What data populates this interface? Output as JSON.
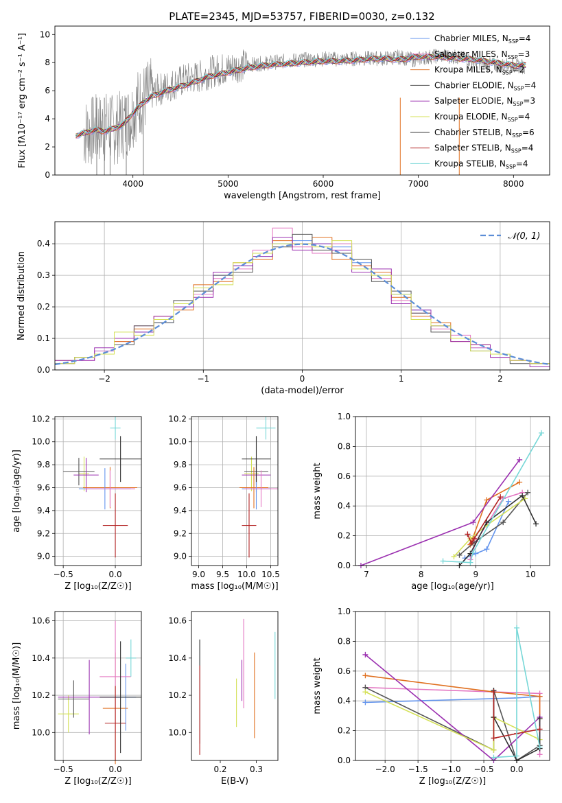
{
  "figure": {
    "title": "PLATE=2345, MJD=53757, FIBERID=0030, z=0.132"
  },
  "chart_data": [
    {
      "id": "spectrum",
      "type": "line",
      "title": "PLATE=2345, MJD=53757, FIBERID=0030, z=0.132",
      "xlabel": "wavelength [Angstrom, rest frame]",
      "ylabel": "Flux [fλ10⁻¹⁷ erg cm⁻² s⁻¹ A⁻¹]",
      "xlim": [
        3180,
        8380
      ],
      "ylim": [
        0,
        10.6
      ],
      "xticks": [
        4000,
        5000,
        6000,
        7000,
        8000
      ],
      "yticks": [
        0,
        2,
        4,
        6,
        8,
        10
      ],
      "grid": false,
      "legend_position": "right",
      "data_series": {
        "name": "data",
        "color": "#808080",
        "x": [
          3480,
          3560,
          3640,
          3720,
          3800,
          3880,
          3960,
          4040,
          4120,
          4250,
          4400,
          4550,
          4700,
          4850,
          5000,
          5150,
          5300,
          5450,
          5600,
          5750,
          5900,
          6050,
          6200,
          6350,
          6500,
          6650,
          6800,
          6950,
          7100,
          7250,
          7400,
          7550,
          7700,
          7850,
          8000,
          8120
        ],
        "y": [
          3.0,
          3.1,
          3.3,
          3.4,
          3.2,
          3.5,
          4.0,
          5.0,
          5.5,
          6.0,
          6.4,
          6.8,
          7.0,
          7.4,
          7.6,
          7.8,
          7.9,
          8.0,
          8.1,
          8.2,
          8.2,
          8.3,
          8.2,
          8.3,
          8.3,
          8.3,
          8.4,
          8.2,
          8.4,
          8.5,
          8.4,
          8.2,
          7.9,
          7.8,
          7.8,
          7.7
        ]
      },
      "series": [
        {
          "name": "Chabrier MILES, N_SSP=4",
          "color": "#6495ed"
        },
        {
          "name": "Salpeter MILES, N_SSP=3",
          "color": "#e377c2"
        },
        {
          "name": "Kroupa MILES, N_SSP=2",
          "color": "#e07020"
        },
        {
          "name": "Chabrier ELODIE, N_SSP=4",
          "color": "#555555"
        },
        {
          "name": "Salpeter ELODIE, N_SSP=3",
          "color": "#9b30b0"
        },
        {
          "name": "Kroupa ELODIE, N_SSP=4",
          "color": "#d4e157"
        },
        {
          "name": "Chabrier STELIB, N_SSP=6",
          "color": "#303030"
        },
        {
          "name": "Salpeter STELIB, N_SSP=4",
          "color": "#b22222"
        },
        {
          "name": "Kroupa STELIB, N_SSP=4",
          "color": "#76d7d7"
        }
      ],
      "model_x": [
        3400,
        3500,
        3600,
        3700,
        3800,
        3900,
        4000,
        4100,
        4200,
        4400,
        4600,
        4800,
        5000,
        5200,
        5400,
        5600,
        5800,
        6000,
        6200,
        6400,
        6600,
        6800,
        7000,
        7200,
        7400,
        7600,
        7800,
        8000,
        8130
      ],
      "model_y": [
        2.8,
        3.0,
        3.2,
        3.1,
        3.3,
        3.6,
        4.4,
        5.1,
        5.6,
        6.1,
        6.5,
        7.0,
        7.3,
        7.6,
        7.8,
        7.9,
        8.0,
        8.1,
        8.1,
        8.2,
        8.3,
        8.2,
        8.4,
        8.4,
        8.3,
        8.2,
        8.0,
        7.8,
        7.8
      ]
    },
    {
      "id": "residual-histogram",
      "type": "histogram",
      "xlabel": "(data-model)/error",
      "ylabel": "Normed distribution",
      "xlim": [
        -2.5,
        2.5
      ],
      "ylim": [
        0,
        0.47
      ],
      "xticks": [
        -2,
        -1,
        0,
        1,
        2
      ],
      "yticks": [
        0.0,
        0.1,
        0.2,
        0.3,
        0.4
      ],
      "grid": true,
      "legend_position": "top-right",
      "legend": "𝒩(0, 1)",
      "bin_edges": [
        -2.5,
        -2.3,
        -2.1,
        -1.9,
        -1.7,
        -1.5,
        -1.3,
        -1.1,
        -0.9,
        -0.7,
        -0.5,
        -0.3,
        -0.1,
        0.1,
        0.3,
        0.5,
        0.7,
        0.9,
        1.1,
        1.3,
        1.5,
        1.7,
        1.9,
        2.1,
        2.3,
        2.5
      ],
      "reference_curve": {
        "name": "𝒩(0, 1)",
        "mean": 0,
        "sigma": 1,
        "color": "#5b8dd6"
      },
      "hist_values": [
        [
          0.03,
          0.04,
          0.06,
          0.1,
          0.12,
          0.15,
          0.2,
          0.26,
          0.3,
          0.33,
          0.36,
          0.4,
          0.41,
          0.4,
          0.39,
          0.34,
          0.3,
          0.24,
          0.19,
          0.14,
          0.1,
          0.07,
          0.05,
          0.03,
          0.02
        ],
        [
          0.02,
          0.03,
          0.06,
          0.09,
          0.14,
          0.16,
          0.21,
          0.24,
          0.29,
          0.32,
          0.38,
          0.45,
          0.39,
          0.37,
          0.4,
          0.33,
          0.29,
          0.22,
          0.18,
          0.13,
          0.11,
          0.07,
          0.04,
          0.03,
          0.02
        ],
        [
          0.03,
          0.04,
          0.05,
          0.09,
          0.13,
          0.17,
          0.19,
          0.27,
          0.28,
          0.34,
          0.35,
          0.41,
          0.4,
          0.42,
          0.35,
          0.33,
          0.31,
          0.23,
          0.17,
          0.15,
          0.09,
          0.08,
          0.05,
          0.03,
          0.02
        ],
        [
          0.02,
          0.04,
          0.05,
          0.08,
          0.14,
          0.15,
          0.22,
          0.25,
          0.3,
          0.31,
          0.37,
          0.39,
          0.43,
          0.38,
          0.37,
          0.35,
          0.28,
          0.25,
          0.18,
          0.12,
          0.1,
          0.06,
          0.05,
          0.02,
          0.02
        ],
        [
          0.03,
          0.03,
          0.07,
          0.1,
          0.12,
          0.17,
          0.2,
          0.23,
          0.31,
          0.33,
          0.36,
          0.42,
          0.38,
          0.4,
          0.38,
          0.31,
          0.32,
          0.21,
          0.19,
          0.14,
          0.09,
          0.08,
          0.04,
          0.03,
          0.01
        ],
        [
          0.02,
          0.04,
          0.05,
          0.12,
          0.11,
          0.16,
          0.21,
          0.26,
          0.27,
          0.34,
          0.37,
          0.4,
          0.4,
          0.39,
          0.41,
          0.32,
          0.3,
          0.24,
          0.16,
          0.14,
          0.1,
          0.06,
          0.05,
          0.03,
          0.02
        ]
      ],
      "hist_colors": [
        "#6495ed",
        "#e377c2",
        "#e07020",
        "#555555",
        "#9b30b0",
        "#d4e157"
      ]
    },
    {
      "id": "age-vs-Z",
      "type": "errorbar",
      "xlabel": "Z [log₁₀(Z/Z☉)]",
      "ylabel": "age  [log₁₀(age/yr)]",
      "xlim": [
        -0.58,
        0.25
      ],
      "ylim": [
        8.92,
        10.22
      ],
      "xticks": [
        -0.5,
        0.0
      ],
      "yticks": [
        9.0,
        9.2,
        9.4,
        9.6,
        9.8,
        10.0,
        10.2
      ],
      "grid": true,
      "points": [
        {
          "x": -0.3,
          "xerr": 0.05,
          "y": 9.72,
          "yerr": 0.15,
          "color": "#d4e157"
        },
        {
          "x": -0.35,
          "xerr": 0.15,
          "y": 9.74,
          "yerr": 0.12,
          "color": "#555555"
        },
        {
          "x": -0.28,
          "xerr": 0.12,
          "y": 9.71,
          "yerr": 0.15,
          "color": "#9b30b0"
        },
        {
          "x": -0.05,
          "xerr": 0.26,
          "y": 9.6,
          "yerr": 0.18,
          "color": "#e07020"
        },
        {
          "x": -0.1,
          "xerr": 0.25,
          "y": 9.59,
          "yerr": 0.18,
          "color": "#6495ed"
        },
        {
          "x": -0.05,
          "xerr": 0.24,
          "y": 9.59,
          "yerr": 0.16,
          "color": "#e377c2"
        },
        {
          "x": 0.0,
          "xerr": 0.12,
          "y": 9.27,
          "yerr": 0.28,
          "color": "#b22222"
        },
        {
          "x": 0.05,
          "xerr": 0.2,
          "y": 9.85,
          "yerr": 0.2,
          "color": "#303030"
        },
        {
          "x": 0.0,
          "xerr": 0.05,
          "y": 10.12,
          "yerr": 0.1,
          "color": "#76d7d7"
        }
      ]
    },
    {
      "id": "age-vs-mass",
      "type": "errorbar",
      "xlabel": "mass [log₁₀(M/M☉)]",
      "ylabel": "",
      "xlim": [
        8.85,
        10.65
      ],
      "ylim": [
        8.92,
        10.22
      ],
      "xticks": [
        9.0,
        9.5,
        10.0,
        10.5
      ],
      "yticks": [
        9.0,
        9.2,
        9.4,
        9.6,
        9.8,
        10.0,
        10.2
      ],
      "grid": true,
      "points": [
        {
          "x": 10.1,
          "xerr": 0.15,
          "y": 9.72,
          "yerr": 0.15,
          "color": "#d4e157"
        },
        {
          "x": 10.2,
          "xerr": 0.25,
          "y": 9.74,
          "yerr": 0.12,
          "color": "#555555"
        },
        {
          "x": 10.2,
          "xerr": 0.3,
          "y": 9.71,
          "yerr": 0.15,
          "color": "#9b30b0"
        },
        {
          "x": 10.15,
          "xerr": 0.3,
          "y": 9.6,
          "yerr": 0.18,
          "color": "#e07020"
        },
        {
          "x": 10.2,
          "xerr": 0.3,
          "y": 9.59,
          "yerr": 0.18,
          "color": "#6495ed"
        },
        {
          "x": 10.3,
          "xerr": 0.35,
          "y": 9.59,
          "yerr": 0.16,
          "color": "#e377c2"
        },
        {
          "x": 10.05,
          "xerr": 0.15,
          "y": 9.27,
          "yerr": 0.28,
          "color": "#b22222"
        },
        {
          "x": 10.2,
          "xerr": 0.3,
          "y": 9.85,
          "yerr": 0.2,
          "color": "#303030"
        },
        {
          "x": 10.4,
          "xerr": 0.2,
          "y": 10.12,
          "yerr": 0.1,
          "color": "#76d7d7"
        }
      ]
    },
    {
      "id": "massweight-vs-age",
      "type": "line",
      "xlabel": "age  [log₁₀(age/yr)]",
      "ylabel": "mass weight",
      "xlim": [
        6.8,
        10.35
      ],
      "ylim": [
        0,
        1.0
      ],
      "xticks": [
        7,
        8,
        9,
        10
      ],
      "yticks": [
        0.0,
        0.2,
        0.4,
        0.6,
        0.8,
        1.0
      ],
      "grid": true,
      "series": [
        {
          "color": "#6495ed",
          "x": [
            8.8,
            9.0,
            9.2,
            9.6
          ],
          "y": [
            0.05,
            0.08,
            0.11,
            0.43
          ]
        },
        {
          "color": "#e377c2",
          "x": [
            8.9,
            9.0,
            9.5,
            9.85
          ],
          "y": [
            0.04,
            0.16,
            0.45,
            0.49
          ]
        },
        {
          "color": "#e07020",
          "x": [
            8.9,
            9.2,
            9.8
          ],
          "y": [
            0.14,
            0.44,
            0.56
          ]
        },
        {
          "color": "#555555",
          "x": [
            8.7,
            8.95,
            9.5,
            9.95
          ],
          "y": [
            0.07,
            0.15,
            0.29,
            0.49
          ]
        },
        {
          "color": "#9b30b0",
          "x": [
            6.9,
            8.95,
            9.8
          ],
          "y": [
            0.0,
            0.29,
            0.71
          ]
        },
        {
          "color": "#d4e157",
          "x": [
            8.6,
            8.9,
            9.2,
            9.9
          ],
          "y": [
            0.06,
            0.18,
            0.27,
            0.45
          ]
        },
        {
          "color": "#303030",
          "x": [
            8.7,
            8.9,
            9.2,
            9.85,
            10.1
          ],
          "y": [
            0.0,
            0.08,
            0.29,
            0.47,
            0.28
          ]
        },
        {
          "color": "#b22222",
          "x": [
            8.85,
            8.92,
            8.97,
            9.45
          ],
          "y": [
            0.21,
            0.15,
            0.18,
            0.46
          ]
        },
        {
          "color": "#76d7d7",
          "x": [
            8.4,
            8.9,
            8.95,
            10.2
          ],
          "y": [
            0.03,
            0.02,
            0.09,
            0.89
          ]
        }
      ]
    },
    {
      "id": "mass-vs-Z",
      "type": "errorbar",
      "xlabel": "Z [log₁₀(Z/Z☉)]",
      "ylabel": "mass [log₁₀(M/M☉)]",
      "xlim": [
        -0.58,
        0.25
      ],
      "ylim": [
        9.85,
        10.65
      ],
      "xticks": [
        -0.5,
        0.0
      ],
      "yticks": [
        10.0,
        10.2,
        10.4,
        10.6
      ],
      "grid": true,
      "points": [
        {
          "x": -0.45,
          "xerr": 0.1,
          "y": 10.1,
          "yerr": 0.1,
          "color": "#d4e157"
        },
        {
          "x": -0.4,
          "xerr": 0.15,
          "y": 10.18,
          "yerr": 0.1,
          "color": "#555555"
        },
        {
          "x": -0.25,
          "xerr": 0.3,
          "y": 10.19,
          "yerr": 0.2,
          "color": "#9b30b0"
        },
        {
          "x": 0.0,
          "xerr": 0.12,
          "y": 10.13,
          "yerr": 0.3,
          "color": "#e07020"
        },
        {
          "x": 0.1,
          "xerr": 0.1,
          "y": 10.19,
          "yerr": 0.18,
          "color": "#6495ed"
        },
        {
          "x": 0.0,
          "xerr": 0.15,
          "y": 10.3,
          "yerr": 0.3,
          "color": "#e377c2"
        },
        {
          "x": 0.0,
          "xerr": 0.1,
          "y": 10.05,
          "yerr": 0.2,
          "color": "#b22222"
        },
        {
          "x": 0.05,
          "xerr": 0.2,
          "y": 10.19,
          "yerr": 0.3,
          "color": "#303030"
        },
        {
          "x": 0.15,
          "xerr": 0.05,
          "y": 10.4,
          "yerr": 0.1,
          "color": "#76d7d7"
        }
      ]
    },
    {
      "id": "mass-vs-EBV",
      "type": "errorbar",
      "xlabel": "E(B-V)",
      "ylabel": "",
      "xlim": [
        0.12,
        0.36
      ],
      "ylim": [
        9.85,
        10.65
      ],
      "xticks": [
        0.2,
        0.3
      ],
      "yticks": [
        10.0,
        10.2,
        10.4,
        10.6
      ],
      "grid": false,
      "points": [
        {
          "x": 0.143,
          "y": 10.22,
          "yerr": 0.28,
          "color": "#303030"
        },
        {
          "x": 0.143,
          "y": 10.12,
          "yerr": 0.24,
          "color": "#b22222"
        },
        {
          "x": 0.245,
          "y": 10.16,
          "yerr": 0.13,
          "color": "#d4e157"
        },
        {
          "x": 0.26,
          "y": 10.28,
          "yerr": 0.11,
          "color": "#9b30b0"
        },
        {
          "x": 0.265,
          "y": 10.37,
          "yerr": 0.24,
          "color": "#e377c2"
        },
        {
          "x": 0.295,
          "y": 10.2,
          "yerr": 0.23,
          "color": "#e07020"
        },
        {
          "x": 0.352,
          "y": 10.36,
          "yerr": 0.18,
          "color": "#76d7d7"
        }
      ]
    },
    {
      "id": "massweight-vs-Z",
      "type": "line",
      "xlabel": "Z [log₁₀(Z/Z☉)]",
      "ylabel": "mass weight",
      "xlim": [
        -2.45,
        0.5
      ],
      "ylim": [
        0,
        1.0
      ],
      "xticks": [
        -2.0,
        -1.5,
        -1.0,
        -0.5,
        0.0
      ],
      "yticks": [
        0.0,
        0.2,
        0.4,
        0.6,
        0.8,
        1.0
      ],
      "grid": true,
      "series": [
        {
          "color": "#6495ed",
          "x": [
            -2.3,
            0.0,
            0.35
          ],
          "y": [
            0.39,
            0.42,
            0.43
          ]
        },
        {
          "color": "#e377c2",
          "x": [
            -2.3,
            0.35,
            0.35
          ],
          "y": [
            0.49,
            0.45,
            0.04
          ]
        },
        {
          "color": "#e07020",
          "x": [
            -2.3,
            -0.35,
            0.35,
            0.35
          ],
          "y": [
            0.57,
            0.46,
            0.43,
            0.28
          ]
        },
        {
          "color": "#555555",
          "x": [
            -2.3,
            -0.35,
            -0.35,
            0.0,
            0.35
          ],
          "y": [
            0.49,
            0.07,
            0.47,
            0.0,
            0.1
          ]
        },
        {
          "color": "#9b30b0",
          "x": [
            -2.3,
            -0.35,
            0.35
          ],
          "y": [
            0.71,
            0.0,
            0.29
          ]
        },
        {
          "color": "#d4e157",
          "x": [
            -2.3,
            -0.35,
            -0.35,
            0.35
          ],
          "y": [
            0.46,
            0.07,
            0.29,
            0.14
          ]
        },
        {
          "color": "#303030",
          "x": [
            -0.35,
            -0.35,
            0.0,
            0.35,
            0.35
          ],
          "y": [
            0.47,
            0.29,
            0.0,
            0.08,
            0.28
          ]
        },
        {
          "color": "#b22222",
          "x": [
            -0.35,
            -0.35,
            0.0,
            0.35
          ],
          "y": [
            0.46,
            0.15,
            0.18,
            0.21
          ]
        },
        {
          "color": "#76d7d7",
          "x": [
            -0.35,
            0.0,
            0.0,
            0.35
          ],
          "y": [
            0.02,
            0.03,
            0.89,
            0.09
          ]
        }
      ]
    }
  ]
}
